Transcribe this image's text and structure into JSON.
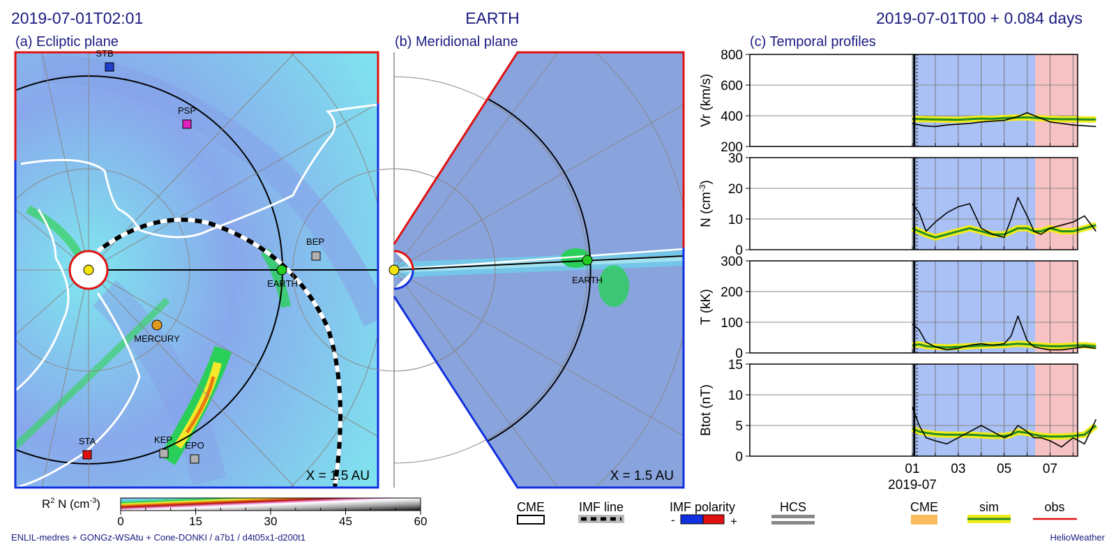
{
  "header": {
    "timestamp": "2019-07-01T02:01",
    "center_title": "EARTH",
    "run_info": "2019-07-01T00 +  0.084 days"
  },
  "panels": {
    "ecliptic_title": "(a) Ecliptic plane",
    "meridional_title": "(b) Meridional plane",
    "profiles_title": "(c) Temporal profiles",
    "scale_label": "X = 1.5 AU"
  },
  "spacecraft": [
    {
      "name": "STB",
      "color": "#1f3fcf"
    },
    {
      "name": "PSP",
      "color": "#e020c0"
    },
    {
      "name": "BEP",
      "color": "#b0b0b0"
    },
    {
      "name": "EARTH",
      "color": "#22cc22"
    },
    {
      "name": "MERCURY",
      "color": "#e09a20"
    },
    {
      "name": "STA",
      "color": "#e01010"
    },
    {
      "name": "KEP",
      "color": "#b0b0b0"
    },
    {
      "name": "EPO",
      "color": "#b0b0b0"
    }
  ],
  "colorbar": {
    "label_main": "R",
    "label_sup": "2",
    "label_rest": " N (cm",
    "label_unit_sup": "-3",
    "label_close": ")",
    "ticks": [
      "0",
      "15",
      "30",
      "45",
      "60"
    ]
  },
  "legend": {
    "cme": "CME",
    "imf_line": "IMF line",
    "imf_polarity": "IMF polarity",
    "polarity_minus": "-",
    "polarity_plus": "+",
    "hcs": "HCS",
    "cme2": "CME",
    "sim": "sim",
    "obs": "obs"
  },
  "footer": {
    "left": "ENLIL-medres + GONGz-WSAtu + Cone-DONKI / a7b1 / d4t05x1-d200t1",
    "right": "HelioWeather"
  },
  "colors": {
    "title": "#1a1a80",
    "sim_shading": "#a9c1f5",
    "obs_shading": "#f7c2c4",
    "sim_line": "#228b22",
    "sim_band": "#f2ec1a",
    "obs_line": "#000000",
    "pos_polarity": "#e01010",
    "neg_polarity": "#1030e0"
  },
  "chart_data": {
    "type": "line",
    "x_tick_labels": [
      "01",
      "03",
      "05",
      "07"
    ],
    "x_sub_label": "2019-07",
    "series_names": [
      "sim",
      "obs"
    ],
    "panels": [
      {
        "ylabel": "Vr (km/s)",
        "ylabel_sup": "",
        "ylabel_close": "",
        "ylim": [
          200,
          800
        ],
        "yticks": [
          "200",
          "400",
          "600",
          "800"
        ],
        "days": [
          0,
          0.5,
          1,
          1.5,
          2,
          2.5,
          3,
          3.5,
          4,
          4.5,
          5,
          5.5,
          6,
          6.5,
          7,
          7.5,
          8
        ],
        "sim": [
          380,
          378,
          376,
          375,
          374,
          378,
          382,
          380,
          385,
          388,
          390,
          385,
          380,
          378,
          378,
          376,
          376
        ],
        "obs": [
          350,
          335,
          330,
          340,
          345,
          350,
          360,
          365,
          370,
          390,
          420,
          390,
          360,
          350,
          340,
          335,
          330
        ]
      },
      {
        "ylabel": "N (cm",
        "ylabel_sup": "-3",
        "ylabel_close": ")",
        "ylim": [
          0,
          30
        ],
        "yticks": [
          "0",
          "10",
          "20",
          "30"
        ],
        "days": [
          0,
          0.3,
          0.6,
          1,
          1.5,
          2,
          2.5,
          3,
          3.5,
          4,
          4.3,
          4.6,
          5,
          5.3,
          5.6,
          6,
          6.5,
          7,
          7.5,
          8
        ],
        "sim": [
          7,
          6,
          5,
          4,
          5,
          6,
          7,
          6,
          5,
          5,
          6,
          7,
          7,
          6,
          6,
          7,
          6,
          6,
          7,
          8
        ],
        "obs": [
          15,
          12,
          6,
          9,
          12,
          14,
          15,
          7,
          5,
          4,
          10,
          17,
          11,
          6,
          5,
          7,
          8,
          9,
          11,
          6
        ]
      },
      {
        "ylabel": "T (kK)",
        "ylabel_sup": "",
        "ylabel_close": "",
        "ylim": [
          0,
          300
        ],
        "yticks": [
          "0",
          "100",
          "200",
          "300"
        ],
        "days": [
          0,
          0.3,
          0.6,
          1,
          1.5,
          2,
          2.5,
          3,
          3.5,
          4,
          4.3,
          4.6,
          5,
          5.3,
          5.6,
          6,
          6.5,
          7,
          7.5,
          8
        ],
        "sim": [
          25,
          28,
          22,
          20,
          18,
          20,
          22,
          24,
          25,
          26,
          28,
          30,
          28,
          26,
          24,
          22,
          22,
          24,
          25,
          22
        ],
        "obs": [
          95,
          75,
          35,
          20,
          10,
          15,
          25,
          30,
          25,
          30,
          55,
          120,
          40,
          20,
          15,
          10,
          10,
          15,
          20,
          15
        ]
      },
      {
        "ylabel": "Btot (nT)",
        "ylabel_sup": "",
        "ylabel_close": "",
        "ylim": [
          0,
          15
        ],
        "yticks": [
          "0",
          "5",
          "10",
          "15"
        ],
        "days": [
          0,
          0.3,
          0.6,
          1,
          1.5,
          2,
          2.5,
          3,
          3.5,
          4,
          4.3,
          4.6,
          5,
          5.3,
          5.6,
          6,
          6.5,
          7,
          7.5,
          8
        ],
        "sim": [
          4.5,
          4.0,
          3.8,
          3.6,
          3.5,
          3.5,
          3.5,
          3.4,
          3.3,
          3.3,
          3.5,
          4.0,
          3.8,
          3.5,
          3.3,
          3.2,
          3.2,
          3.3,
          3.5,
          5.0
        ],
        "obs": [
          8,
          5,
          3,
          2.5,
          2,
          3,
          4,
          5,
          4,
          3,
          3.5,
          5,
          4,
          3,
          3,
          2.5,
          1.5,
          3,
          2,
          6
        ]
      }
    ]
  }
}
